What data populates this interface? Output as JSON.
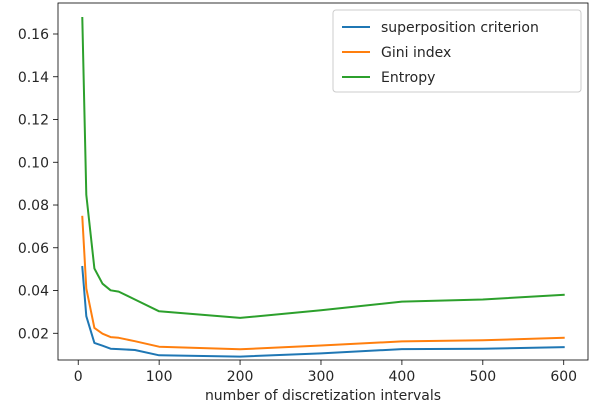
{
  "chart_data": {
    "type": "line",
    "title": "",
    "xlabel": "number of discretization intervals",
    "ylabel": "",
    "xlim": [
      -25,
      630
    ],
    "ylim": [
      0.0075,
      0.1745
    ],
    "grid": false,
    "legend_placement": "top-right",
    "x_ticks": [
      0,
      100,
      200,
      300,
      400,
      500,
      600
    ],
    "x_tick_labels": [
      "0",
      "100",
      "200",
      "300",
      "400",
      "500",
      "600"
    ],
    "y_ticks": [
      0.02,
      0.04,
      0.06,
      0.08,
      0.1,
      0.12,
      0.14,
      0.16
    ],
    "y_tick_labels": [
      "0.02",
      "0.04",
      "0.06",
      "0.08",
      "0.10",
      "0.12",
      "0.14",
      "0.16"
    ],
    "series": [
      {
        "name": "superposition criterion",
        "color": "#1f77b4",
        "x": [
          5,
          10,
          20,
          30,
          40,
          50,
          70,
          100,
          200,
          300,
          400,
          500,
          600
        ],
        "y": [
          0.051,
          0.028,
          0.0155,
          0.0142,
          0.0128,
          0.0126,
          0.0122,
          0.0097,
          0.0091,
          0.0106,
          0.0126,
          0.0128,
          0.0135
        ]
      },
      {
        "name": "Gini index",
        "color": "#ff7f0e",
        "x": [
          5,
          10,
          20,
          30,
          40,
          50,
          70,
          100,
          200,
          300,
          400,
          500,
          600
        ],
        "y": [
          0.0745,
          0.041,
          0.0225,
          0.0198,
          0.0182,
          0.0179,
          0.0163,
          0.0137,
          0.0125,
          0.0143,
          0.0162,
          0.0167,
          0.0179
        ]
      },
      {
        "name": "Entropy",
        "color": "#2ca02c",
        "x": [
          5,
          10,
          20,
          30,
          40,
          50,
          70,
          100,
          200,
          300,
          400,
          500,
          600
        ],
        "y": [
          0.1675,
          0.0848,
          0.0503,
          0.0432,
          0.0401,
          0.0395,
          0.0358,
          0.0303,
          0.0272,
          0.0308,
          0.0348,
          0.0358,
          0.038
        ]
      }
    ]
  }
}
